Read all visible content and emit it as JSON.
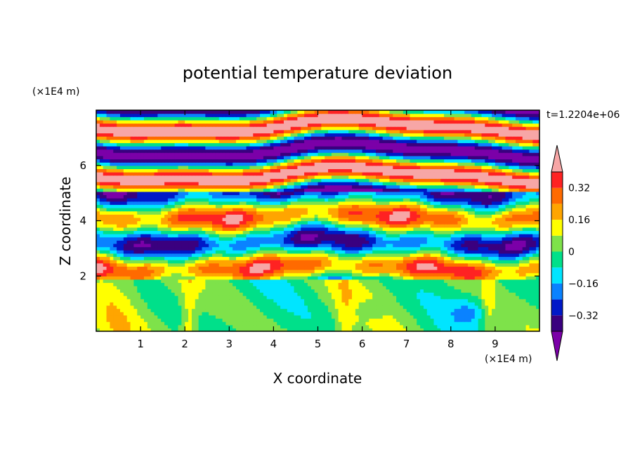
{
  "chart_data": {
    "type": "heatmap",
    "title": "potential temperature deviation",
    "xlabel": "X coordinate",
    "ylabel": "Z coordinate",
    "x_unit": "(×1E4 m)",
    "y_unit": "(×1E4 m)",
    "time_label": "t=1.2204e+06",
    "xlim": [
      0,
      10
    ],
    "ylim": [
      0,
      8
    ],
    "x_ticks": [
      1,
      2,
      3,
      4,
      5,
      6,
      7,
      8,
      9
    ],
    "x_tick_labels": [
      "1",
      "2",
      "3",
      "4",
      "5",
      "6",
      "7",
      "8",
      "9"
    ],
    "y_ticks": [
      2,
      4,
      6
    ],
    "y_tick_labels": [
      "2",
      "4",
      "6"
    ],
    "colorbar": {
      "extend": "both",
      "levels": [
        -0.4,
        -0.32,
        -0.24,
        -0.16,
        -0.08,
        0,
        0.08,
        0.16,
        0.24,
        0.32,
        0.4
      ],
      "colors": [
        "#7b00a8",
        "#3a007f",
        "#0019c8",
        "#0a82ff",
        "#00e5ff",
        "#00e08a",
        "#7ee24a",
        "#ffff00",
        "#ffa500",
        "#ff6a00",
        "#ff2222",
        "#f7a6a6"
      ],
      "tick_values": [
        -0.32,
        -0.16,
        0,
        0.16,
        0.32
      ],
      "tick_labels": [
        "−0.32",
        "−0.16",
        "0",
        "0.16",
        "0.32"
      ]
    }
  }
}
